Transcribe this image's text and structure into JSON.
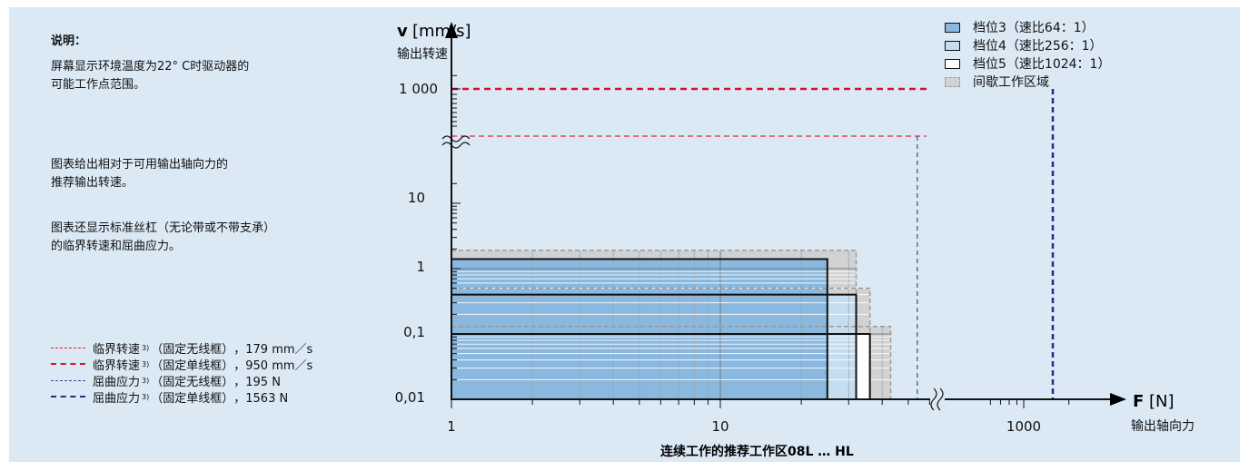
{
  "description": {
    "heading": "说明：",
    "para1": [
      "屏幕显示环境温度为22° C时驱动器的",
      "可能工作点范围。"
    ],
    "para2": [
      "图表给出相对于可用输出轴向力的",
      "推荐输出转速。"
    ],
    "para3": [
      "图表还显示标准丝杠（无论带或不带支承）",
      "的临界转速和屈曲应力。"
    ]
  },
  "reference_lines": [
    {
      "label": "临界转速",
      "sup": "3)",
      "mount": "（固定无线框）",
      "value": "，179 mm／s",
      "color": "#e8213b",
      "style": "thin-dashed"
    },
    {
      "label": "临界转速",
      "sup": "3)",
      "mount": "（固定单线框）",
      "value": "，950 mm／s",
      "color": "#d9112e",
      "style": "thick-dashed"
    },
    {
      "label": "屈曲应力",
      "sup": "3)",
      "mount": "（固定无线框）",
      "value": "，195 N",
      "color": "#3a4aa0",
      "style": "thin-dashed"
    },
    {
      "label": "屈曲应力",
      "sup": "3)",
      "mount": "（固定单线框）",
      "value": "，1563 N",
      "color": "#1f2f8a",
      "style": "thick-dashed"
    }
  ],
  "chart_data": {
    "type": "area",
    "x_scale": "log",
    "y_scale": "log",
    "y_axis_break": true,
    "x_axis_break": true,
    "xlabel_symbol": "F",
    "xlabel_unit": "[N]",
    "xlabel": "输出轴向力",
    "ylabel_symbol": "v",
    "ylabel_unit": "[mm/s]",
    "ylabel": "输出转速",
    "x_ticks": [
      "1",
      "10",
      "1000"
    ],
    "y_ticks": [
      "0,01",
      "0,1",
      "1",
      "10",
      "1 000"
    ],
    "footer": "连续工作的推荐工作区08L … HL",
    "legend": [
      "档位3（速比64：1）",
      "档位4（速比256：1）",
      "档位5（速比1024：1）",
      "间歇工作区域"
    ],
    "legend_colors": [
      "#8ab8de",
      "#c5ddf0",
      "#ffffff",
      "#d2d2d2"
    ],
    "series": [
      {
        "name": "档位3（速比64：1）",
        "continuous_max_force_N": 25,
        "continuous_max_speed_mm_s": 1.4,
        "intermittent_max_force_N": 32,
        "intermittent_max_speed_mm_s": 1.9
      },
      {
        "name": "档位4（速比256：1）",
        "continuous_max_force_N": 32,
        "continuous_max_speed_mm_s": 0.4,
        "intermittent_max_force_N": 36,
        "intermittent_max_speed_mm_s": 0.5
      },
      {
        "name": "档位5（速比1024：1）",
        "continuous_max_force_N": 36,
        "continuous_max_speed_mm_s": 0.1,
        "intermittent_max_force_N": 43,
        "intermittent_max_speed_mm_s": 0.13
      }
    ],
    "critical_speeds_mm_s": [
      179,
      950
    ],
    "buckling_loads_N": [
      195,
      1563
    ]
  }
}
